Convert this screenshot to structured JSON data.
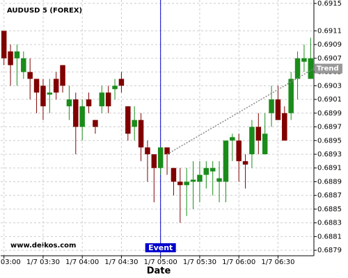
{
  "chart_data": {
    "type": "candlestick",
    "title": "AUDUSD 5 (FOREX)",
    "watermark": "www.delkos.com",
    "x_label": "Date",
    "categories": [
      "1/7 03:00",
      null,
      null,
      null,
      null,
      null,
      "1/7 03:30",
      null,
      null,
      null,
      null,
      null,
      "1/7 04:00",
      null,
      null,
      null,
      null,
      null,
      "1/7 04:30",
      null,
      null,
      null,
      null,
      null,
      "1/7 05:00",
      null,
      null,
      null,
      null,
      null,
      "1/7 05:30",
      null,
      null,
      null,
      null,
      null,
      "1/7 06:00",
      null,
      null,
      null,
      null,
      null,
      "1/7 06:30",
      null,
      null,
      null,
      null,
      null
    ],
    "open": [
      0.6911,
      0.6908,
      0.6907,
      0.6905,
      0.6905,
      0.6904,
      0.6903,
      0.69017,
      0.6904,
      0.6906,
      0.69,
      0.6901,
      0.6897,
      0.6901,
      0.6898,
      0.69,
      0.6902,
      0.69025,
      0.6904,
      0.69,
      0.6897,
      0.6898,
      0.6894,
      0.6893,
      0.6891,
      0.6894,
      0.6891,
      0.6889,
      0.68885,
      0.6889,
      0.6889,
      0.689,
      0.68905,
      0.6889,
      0.6889,
      0.6895,
      0.6895,
      0.6892,
      0.6893,
      0.6897,
      0.6893,
      0.6899,
      0.6901,
      0.6899,
      0.6899,
      0.6904,
      0.69065,
      0.6904
    ],
    "high": [
      0.6911,
      0.6909,
      0.6909,
      0.6908,
      0.6907,
      0.6904,
      0.6904,
      0.6904,
      0.6905,
      0.6906,
      0.6903,
      0.6902,
      0.6901,
      0.6902,
      0.6898,
      0.6903,
      0.6903,
      0.6904,
      0.6905,
      0.69,
      0.69,
      0.6899,
      0.6895,
      0.6893,
      0.6894,
      0.6894,
      0.6891,
      0.6891,
      0.6891,
      0.6892,
      0.6892,
      0.6892,
      0.6892,
      0.6892,
      0.6895,
      0.6896,
      0.6896,
      0.6893,
      0.6898,
      0.6899,
      0.6899,
      0.6903,
      0.6903,
      0.69,
      0.6905,
      0.6908,
      0.6909,
      0.691
    ],
    "low": [
      0.6906,
      0.6903,
      0.6903,
      0.6904,
      0.6901,
      0.6899,
      0.6898,
      0.6899,
      0.6901,
      0.6902,
      0.6898,
      0.6893,
      0.6895,
      0.6899,
      0.6896,
      0.6899,
      0.6899,
      0.6901,
      0.6902,
      0.6895,
      0.6895,
      0.6892,
      0.6889,
      0.6886,
      0.689,
      0.689,
      0.6887,
      0.6883,
      0.6884,
      0.6885,
      0.6886,
      0.6888,
      0.6887,
      0.6886,
      0.6886,
      0.6892,
      0.6889,
      0.6888,
      0.6891,
      0.6893,
      0.6893,
      0.6897,
      0.6898,
      0.6895,
      0.6898,
      0.6901,
      0.6905,
      0.6904
    ],
    "close": [
      0.6907,
      0.6906,
      0.6908,
      0.6907,
      0.6904,
      0.6902,
      0.69,
      0.6902,
      0.6902,
      0.6903,
      0.6901,
      0.6897,
      0.69,
      0.69,
      0.6897,
      0.6902,
      0.69,
      0.6903,
      0.6903,
      0.6896,
      0.6898,
      0.6894,
      0.6893,
      0.6891,
      0.6894,
      0.6893,
      0.6889,
      0.68885,
      0.6889,
      0.68893,
      0.689,
      0.6891,
      0.6891,
      0.68895,
      0.6895,
      0.68955,
      0.6892,
      0.68915,
      0.6897,
      0.6895,
      0.6896,
      0.6901,
      0.6898,
      0.6895,
      0.6904,
      0.6907,
      0.6907,
      0.6907
    ],
    "up_color": "#1a8c1a",
    "down_color": "#800000",
    "ylim": [
      0.68782,
      0.69155
    ],
    "yticks": [
      0.6915,
      0.6911,
      0.6909,
      0.6907,
      0.6905,
      0.6903,
      0.6901,
      0.6899,
      0.6897,
      0.6895,
      0.6893,
      0.6891,
      0.6889,
      0.6887,
      0.6885,
      0.6883,
      0.6881,
      0.6879
    ],
    "grid": true,
    "event": {
      "label": "Event",
      "time": "1/7 05:00",
      "color": "#0000cc"
    },
    "trend": {
      "label": "Trend",
      "values": [
        0.6893,
        0.69055
      ],
      "color": "#888888"
    }
  }
}
